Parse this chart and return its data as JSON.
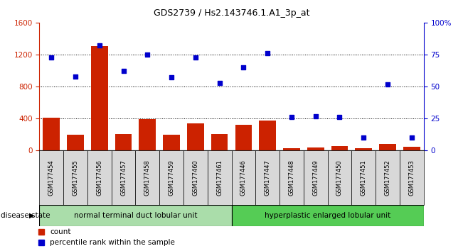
{
  "title": "GDS2739 / Hs2.143746.1.A1_3p_at",
  "categories": [
    "GSM177454",
    "GSM177455",
    "GSM177456",
    "GSM177457",
    "GSM177458",
    "GSM177459",
    "GSM177460",
    "GSM177461",
    "GSM177446",
    "GSM177447",
    "GSM177448",
    "GSM177449",
    "GSM177450",
    "GSM177451",
    "GSM177452",
    "GSM177453"
  ],
  "bar_values": [
    410,
    200,
    1310,
    210,
    395,
    195,
    340,
    205,
    325,
    375,
    30,
    35,
    55,
    30,
    80,
    45
  ],
  "scatter_values": [
    73,
    58,
    82,
    62,
    75,
    57,
    73,
    53,
    65,
    76,
    26,
    27,
    26,
    10,
    52,
    10
  ],
  "group1_label": "normal terminal duct lobular unit",
  "group2_label": "hyperplastic enlarged lobular unit",
  "group1_count": 8,
  "group2_count": 8,
  "bar_color": "#cc2200",
  "scatter_color": "#0000cc",
  "group1_bg": "#aaddaa",
  "group2_bg": "#55cc55",
  "ylim_left": [
    0,
    1600
  ],
  "ylim_right": [
    0,
    100
  ],
  "yticks_left": [
    0,
    400,
    800,
    1200,
    1600
  ],
  "yticks_right": [
    0,
    25,
    50,
    75,
    100
  ],
  "legend_count_label": "count",
  "legend_pct_label": "percentile rank within the sample",
  "disease_state_label": "disease state",
  "title_fontsize": 9,
  "tick_fontsize": 7.5,
  "label_fontsize": 7.5
}
